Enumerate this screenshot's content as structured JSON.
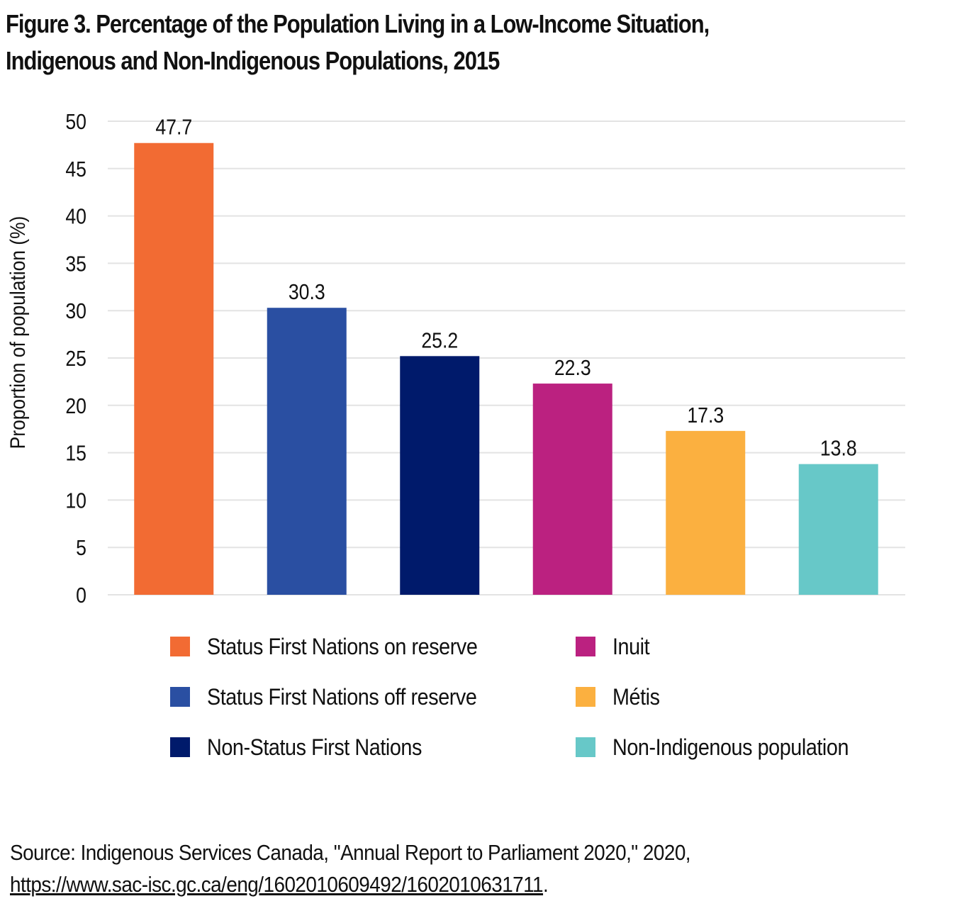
{
  "figure": {
    "title_line1": "Figure 3. Percentage of the Population Living in a Low-Income Situation,",
    "title_line2": "Indigenous and Non-Indigenous Populations, 2015",
    "source_text": "Source: Indigenous Services Canada, \"Annual Report to Parliament 2020,\" 2020,",
    "source_link": "https://www.sac-isc.gc.ca/eng/1602010609492/1602010631711",
    "source_link_suffix": "."
  },
  "chart_data": {
    "type": "bar",
    "title": "Figure 3. Percentage of the Population Living in a Low-Income Situation, Indigenous and Non-Indigenous Populations, 2015",
    "xlabel": "",
    "ylabel": "Proportion of population (%)",
    "ylim": [
      0,
      50
    ],
    "yticks": [
      0,
      5,
      10,
      15,
      20,
      25,
      30,
      35,
      40,
      45,
      50
    ],
    "grid": true,
    "categories": [
      "Status First Nations on reserve",
      "Status First Nations off reserve",
      "Non-Status First Nations",
      "Inuit",
      "Métis",
      "Non-Indigenous population"
    ],
    "values": [
      47.7,
      30.3,
      25.2,
      22.3,
      17.3,
      13.8
    ],
    "value_labels": [
      "47.7",
      "30.3",
      "25.2",
      "22.3",
      "17.3",
      "13.8"
    ],
    "colors": [
      "#f26b33",
      "#2a4fa2",
      "#001a6b",
      "#bb2180",
      "#fbb040",
      "#67c8c8"
    ],
    "legend_position": "bottom",
    "legend": [
      {
        "label": "Status First Nations on reserve",
        "color": "#f26b33"
      },
      {
        "label": "Status First Nations off reserve",
        "color": "#2a4fa2"
      },
      {
        "label": "Non-Status First Nations",
        "color": "#001a6b"
      },
      {
        "label": "Inuit",
        "color": "#bb2180"
      },
      {
        "label": "Métis",
        "color": "#fbb040"
      },
      {
        "label": "Non-Indigenous population",
        "color": "#67c8c8"
      }
    ]
  }
}
